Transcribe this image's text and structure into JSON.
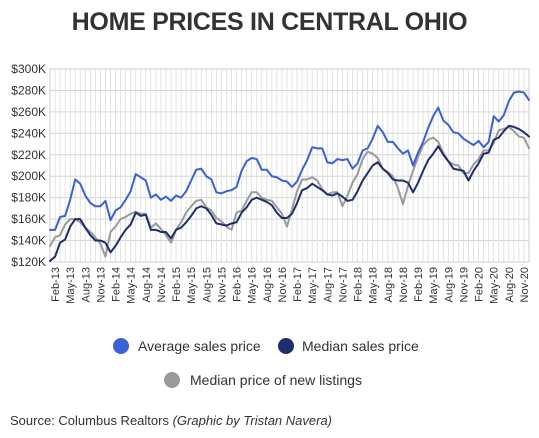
{
  "chart_data": {
    "type": "line",
    "title": "HOME PRICES IN CENTRAL OHIO",
    "source": "Source: Columbus Realtors",
    "credit": "(Graphic by Tristan Navera)",
    "ylim": [
      120000,
      300000
    ],
    "y_ticks": [
      "$120K",
      "$140K",
      "$160K",
      "$180K",
      "$200K",
      "$220K",
      "$240K",
      "$260K",
      "$280K",
      "$300K"
    ],
    "x_tick_labels": [
      "Feb-13",
      "May-13",
      "Aug-13",
      "Nov-13",
      "Feb-14",
      "May-14",
      "Aug-14",
      "Nov-14",
      "Feb-15",
      "May-15",
      "Aug-15",
      "Nov-15",
      "Feb-16",
      "May-16",
      "Aug-16",
      "Nov-16",
      "Feb-17",
      "May-17",
      "Aug-17",
      "Nov-17",
      "Feb-18",
      "May-18",
      "Aug-18",
      "Nov-18",
      "Feb-19",
      "May-19",
      "Aug-19",
      "Nov-19",
      "Feb-20",
      "May-20",
      "Aug-20",
      "Nov-20"
    ],
    "x_start": "Jan-13",
    "x_end": "Nov-20",
    "grid": true,
    "legend_position": "bottom",
    "series": [
      {
        "name": "Average sales price",
        "color": "#3a62d6",
        "values": [
          150000,
          150000,
          162000,
          163000,
          178000,
          197000,
          193000,
          182000,
          175000,
          172000,
          172000,
          177000,
          159000,
          168000,
          171000,
          178000,
          186000,
          202000,
          199000,
          196000,
          180000,
          183000,
          178000,
          181000,
          177000,
          182000,
          180000,
          186000,
          196000,
          206000,
          207000,
          200000,
          197000,
          185000,
          184000,
          186000,
          187000,
          190000,
          205000,
          214000,
          217000,
          216000,
          206000,
          206000,
          200000,
          199000,
          196000,
          195000,
          190000,
          195000,
          206000,
          215000,
          227000,
          226000,
          226000,
          213000,
          212000,
          216000,
          215000,
          216000,
          207000,
          212000,
          224000,
          226000,
          235000,
          247000,
          241000,
          232000,
          232000,
          226000,
          221000,
          224000,
          210000,
          222000,
          232000,
          245000,
          256000,
          264000,
          252000,
          248000,
          241000,
          240000,
          235000,
          232000,
          229000,
          233000,
          227000,
          232000,
          256000,
          251000,
          257000,
          270000,
          278000,
          279000,
          278000,
          271000
        ]
      },
      {
        "name": "Median sales price",
        "color": "#1f2f6e",
        "values": [
          121000,
          125000,
          138000,
          141000,
          153000,
          160000,
          160000,
          152000,
          145000,
          140000,
          140000,
          138000,
          129000,
          135000,
          143000,
          150000,
          155000,
          166000,
          163000,
          164000,
          150000,
          150000,
          148000,
          148000,
          142000,
          150000,
          152000,
          157000,
          163000,
          170000,
          172000,
          170000,
          164000,
          156000,
          155000,
          154000,
          156000,
          157000,
          166000,
          171000,
          178000,
          180000,
          178000,
          176000,
          173000,
          166000,
          161000,
          161000,
          165000,
          175000,
          187000,
          189000,
          193000,
          190000,
          187000,
          183000,
          182000,
          184000,
          181000,
          177000,
          178000,
          186000,
          196000,
          203000,
          210000,
          213000,
          207000,
          203000,
          197000,
          196000,
          196000,
          194000,
          185000,
          194000,
          205000,
          215000,
          221000,
          228000,
          220000,
          214000,
          207000,
          206000,
          205000,
          196000,
          205000,
          212000,
          221000,
          222000,
          234000,
          236000,
          242000,
          247000,
          246000,
          244000,
          241000,
          237000
        ]
      },
      {
        "name": "Median price of new listings",
        "color": "#9a9a9a",
        "values": [
          135000,
          143000,
          145000,
          155000,
          160000,
          160000,
          157000,
          152000,
          148000,
          143000,
          137000,
          125000,
          148000,
          153000,
          160000,
          162000,
          165000,
          167000,
          165000,
          165000,
          152000,
          156000,
          151000,
          145000,
          138000,
          150000,
          157000,
          166000,
          172000,
          177000,
          178000,
          171000,
          168000,
          161000,
          158000,
          153000,
          150000,
          166000,
          168000,
          177000,
          185000,
          185000,
          180000,
          178000,
          177000,
          171000,
          165000,
          153000,
          169000,
          186000,
          197000,
          197000,
          199000,
          196000,
          188000,
          183000,
          185000,
          185000,
          172000,
          182000,
          194000,
          202000,
          216000,
          223000,
          221000,
          217000,
          207000,
          204000,
          200000,
          189000,
          174000,
          191000,
          205000,
          218000,
          229000,
          234000,
          236000,
          232000,
          222000,
          214000,
          211000,
          210000,
          203000,
          203000,
          211000,
          216000,
          224000,
          224000,
          231000,
          243000,
          244000,
          246000,
          242000,
          237000,
          236000,
          226000
        ]
      }
    ]
  }
}
